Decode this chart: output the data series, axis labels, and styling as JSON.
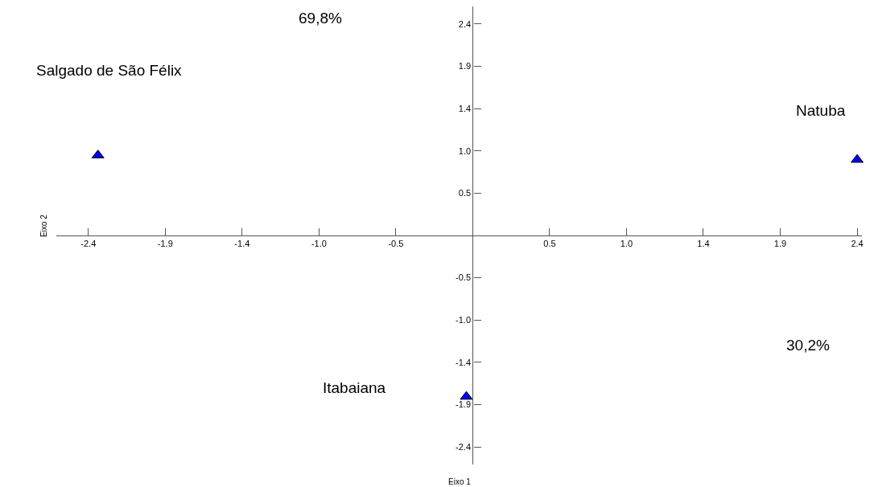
{
  "chart_data": {
    "type": "scatter",
    "xlabel": "Eixo 1",
    "ylabel": "Eixo 2",
    "x": [
      -2.34,
      2.4,
      -0.04
    ],
    "series": [
      {
        "color": "#0000ff",
        "values": [
          0.91,
          0.86,
          -1.83
        ]
      }
    ],
    "marker": "triangle",
    "xlim": [
      -2.6,
      2.43
    ],
    "ylim": [
      -2.6,
      2.6
    ],
    "xticks": [
      -2.4,
      {
        "value": -1.92,
        "label": "-1.9"
      },
      {
        "value": -1.44,
        "label": "-1.4"
      },
      {
        "value": -0.96,
        "label": "-1.0"
      },
      {
        "value": -0.48,
        "label": "-0.5"
      },
      {
        "value": 0.48,
        "label": "0.5"
      },
      {
        "value": 0.96,
        "label": "1.0"
      },
      {
        "value": 1.44,
        "label": "1.4"
      },
      {
        "value": 1.92,
        "label": "1.9"
      },
      2.4
    ],
    "yticks": [
      -2.4,
      {
        "value": -1.92,
        "label": "-1.9"
      },
      {
        "value": -1.44,
        "label": "-1.4"
      },
      {
        "value": -0.96,
        "label": "-1.0"
      },
      {
        "value": -0.48,
        "label": "-0.5"
      },
      {
        "value": 0.48,
        "label": "0.5"
      },
      {
        "value": 0.96,
        "label": "1.0"
      },
      {
        "value": 1.44,
        "label": "1.4"
      },
      {
        "value": 1.92,
        "label": "1.9"
      },
      2.4
    ],
    "annotations": [
      "69,8%",
      "Salgado de São Félix",
      "Natuba",
      "30,2%",
      "Itabaiana"
    ]
  }
}
